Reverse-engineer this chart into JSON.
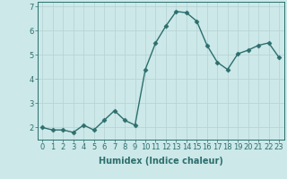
{
  "x": [
    0,
    1,
    2,
    3,
    4,
    5,
    6,
    7,
    8,
    9,
    10,
    11,
    12,
    13,
    14,
    15,
    16,
    17,
    18,
    19,
    20,
    21,
    22,
    23
  ],
  "y": [
    2.0,
    1.9,
    1.9,
    1.8,
    2.1,
    1.9,
    2.3,
    2.7,
    2.3,
    2.1,
    4.4,
    5.5,
    6.2,
    6.8,
    6.75,
    6.4,
    5.4,
    4.7,
    4.4,
    5.05,
    5.2,
    5.4,
    5.5,
    4.9
  ],
  "line_color": "#2d6e6e",
  "marker": "D",
  "markersize": 2.5,
  "linewidth": 1.0,
  "bg_color": "#cce8e8",
  "grid_color": "#b8d4d4",
  "xlabel": "Humidex (Indice chaleur)",
  "xlabel_fontsize": 7,
  "tick_fontsize": 6,
  "ylim": [
    1.5,
    7.2
  ],
  "xlim": [
    -0.5,
    23.5
  ],
  "yticks": [
    2,
    3,
    4,
    5,
    6,
    7
  ],
  "xticks": [
    0,
    1,
    2,
    3,
    4,
    5,
    6,
    7,
    8,
    9,
    10,
    11,
    12,
    13,
    14,
    15,
    16,
    17,
    18,
    19,
    20,
    21,
    22,
    23
  ]
}
